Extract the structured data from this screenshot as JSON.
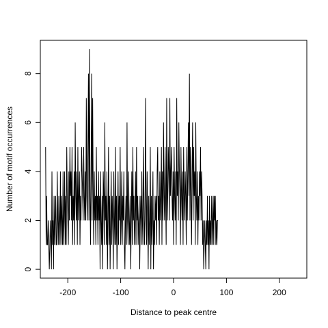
{
  "chart_data": {
    "type": "line",
    "title": "",
    "xlabel": "Distance to peak centre",
    "ylabel": "Number of motif occurrences",
    "xlim": [
      -252,
      252
    ],
    "ylim": [
      -0.36,
      9.36
    ],
    "x_ticks": [
      -200,
      -100,
      0,
      100,
      200
    ],
    "x_tick_labels": [
      "-200",
      "-100",
      "0",
      "100",
      "200"
    ],
    "y_ticks": [
      0,
      2,
      4,
      6,
      8
    ],
    "y_tick_labels": [
      "0",
      "2",
      "4",
      "6",
      "8"
    ],
    "grid": false,
    "line_color": "#000000",
    "series": [
      {
        "x_start": -242,
        "x_step": 1,
        "values": [
          5,
          1,
          3,
          1,
          1,
          2,
          1,
          0,
          1,
          2,
          1,
          0,
          4,
          1,
          2,
          0,
          3,
          1,
          2,
          3,
          1,
          1,
          4,
          2,
          1,
          3,
          2,
          1,
          4,
          1,
          3,
          2,
          1,
          4,
          1,
          2,
          4,
          1,
          3,
          1,
          5,
          3,
          2,
          1,
          4,
          2,
          5,
          3,
          4,
          2,
          5,
          1,
          3,
          2,
          4,
          1,
          6,
          3,
          2,
          4,
          1,
          5,
          2,
          3,
          4,
          1,
          3,
          2,
          5,
          4,
          3,
          2,
          5,
          3,
          2,
          4,
          2,
          7,
          3,
          2,
          5,
          8,
          2,
          9,
          3,
          1,
          4,
          8,
          2,
          7,
          3,
          1,
          4,
          2,
          3,
          1,
          5,
          2,
          3,
          1,
          4,
          2,
          3,
          0,
          4,
          2,
          1,
          3,
          0,
          4,
          3,
          1,
          6,
          2,
          3,
          1,
          4,
          0,
          2,
          5,
          1,
          3,
          0,
          2,
          4,
          1,
          3,
          2,
          0,
          4,
          2,
          1,
          5,
          1,
          3,
          0,
          2,
          4,
          1,
          3,
          2,
          5,
          1,
          2,
          4,
          1,
          3,
          2,
          4,
          1,
          0,
          2,
          3,
          1,
          6,
          2,
          1,
          4,
          2,
          1,
          3,
          0,
          2,
          4,
          1,
          5,
          2,
          3,
          1,
          2,
          4,
          1,
          5,
          2,
          3,
          1,
          2,
          3,
          0,
          2,
          3,
          1,
          4,
          2,
          1,
          5,
          3,
          1,
          2,
          7,
          3,
          1,
          4,
          2,
          0,
          3,
          1,
          2,
          5,
          0,
          3,
          1,
          2,
          4,
          0,
          2,
          1,
          3,
          2,
          3,
          1,
          4,
          5,
          2,
          3,
          1,
          4,
          2,
          3,
          5,
          1,
          4,
          2,
          6,
          3,
          2,
          5,
          3,
          1,
          7,
          2,
          3,
          5,
          4,
          2,
          7,
          3,
          4,
          5,
          3,
          2,
          4,
          1,
          5,
          3,
          2,
          4,
          1,
          7,
          3,
          4,
          2,
          6,
          4,
          3,
          1,
          5,
          3,
          2,
          4,
          1,
          5,
          3,
          2,
          4,
          3,
          1,
          5,
          2,
          4,
          6,
          3,
          8,
          2,
          5,
          3,
          1,
          4,
          6,
          2,
          5,
          3,
          4,
          1,
          6,
          3,
          2,
          4,
          1,
          3,
          2,
          4,
          3,
          5,
          2,
          4,
          3,
          1,
          2,
          0,
          1,
          2,
          1,
          0,
          2,
          1,
          3,
          1,
          2,
          0,
          3,
          1,
          2,
          1,
          3,
          2,
          1,
          3,
          1,
          3,
          2,
          3,
          1,
          2,
          1,
          2,
          2
        ]
      }
    ]
  }
}
